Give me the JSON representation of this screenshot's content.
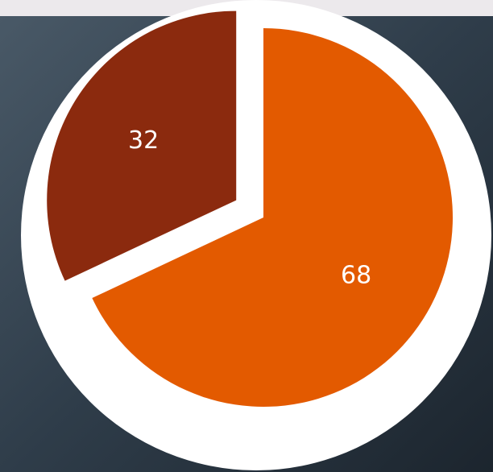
{
  "chart_data": {
    "type": "pie",
    "values": [
      68,
      32
    ],
    "colors": [
      "#e35a00",
      "#8b2a0e"
    ],
    "explode": [
      0,
      1
    ]
  }
}
